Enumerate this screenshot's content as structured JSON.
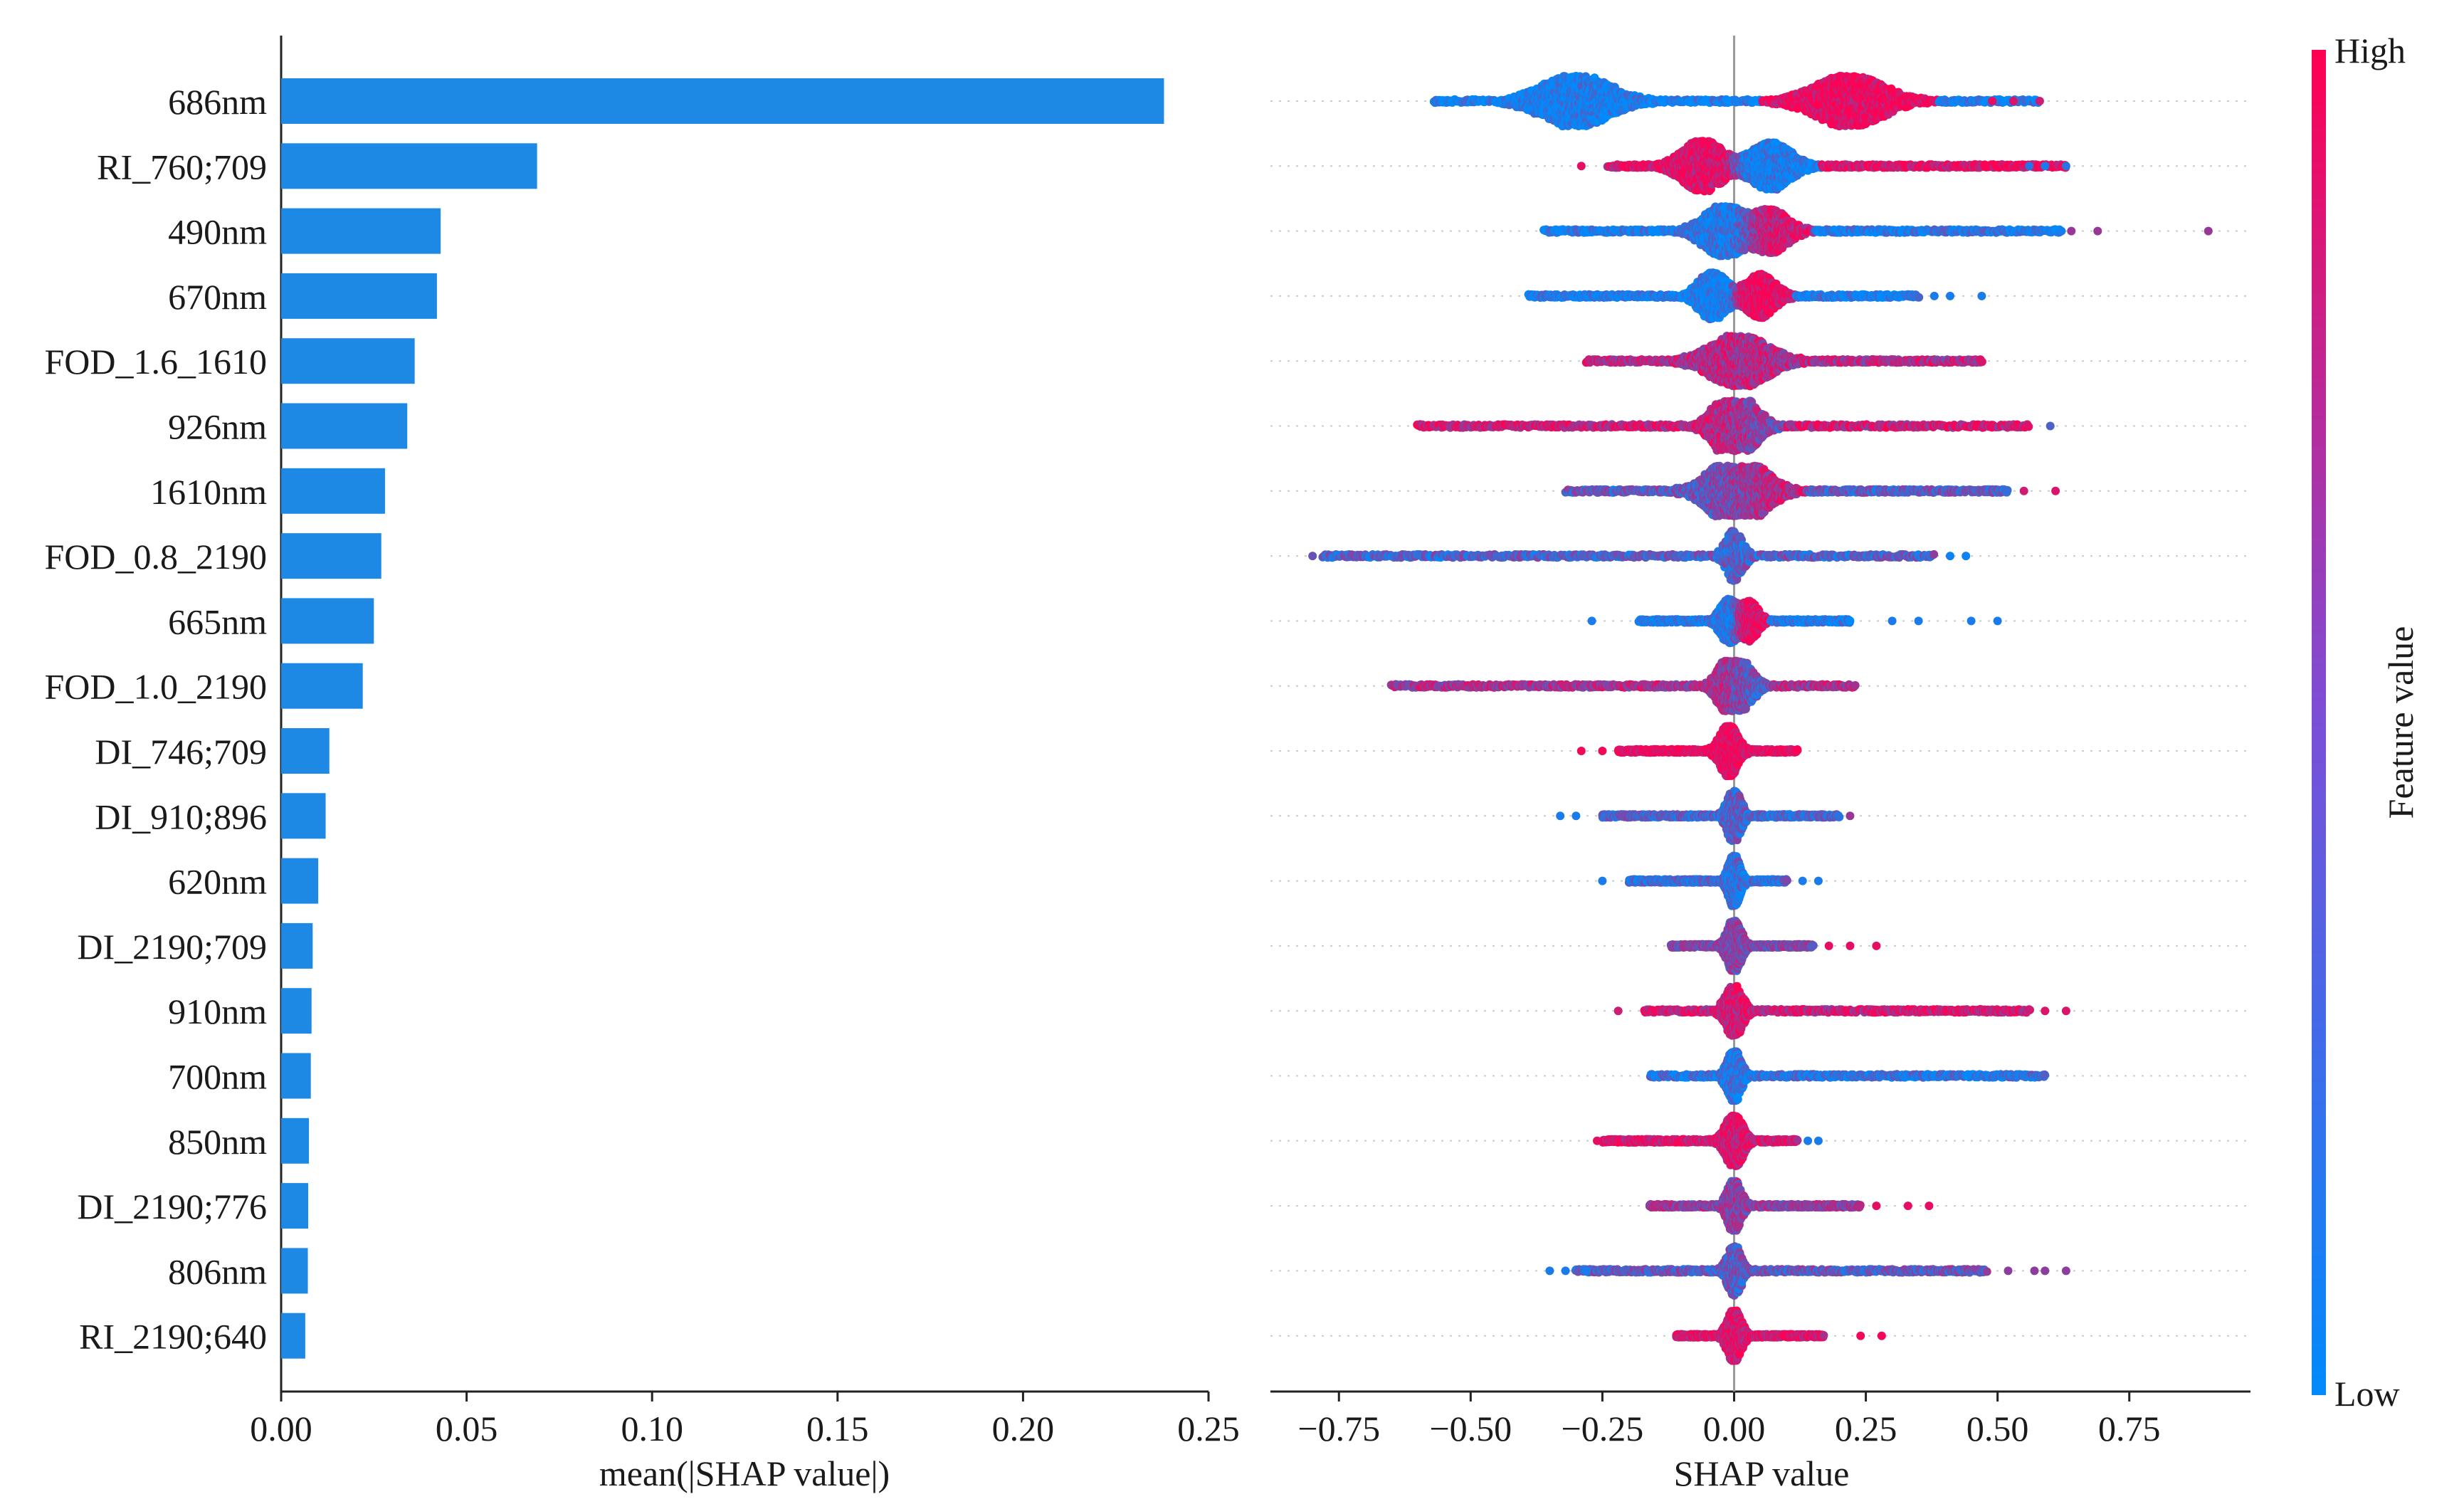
{
  "colors": {
    "bar": "#1e88e5",
    "low": "#008afb",
    "high": "#ff0052",
    "axis": "#222222",
    "zero_line": "#999999",
    "guide": "#cccccc"
  },
  "chart_data": [
    {
      "type": "bar",
      "orientation": "horizontal",
      "title": "",
      "xlabel": "mean(|SHAP value|)",
      "ylabel": "",
      "xlim": [
        0.0,
        0.25
      ],
      "xticks": [
        "0.00",
        "0.05",
        "0.10",
        "0.15",
        "0.20",
        "0.25"
      ],
      "tick_values": [
        0.0,
        0.05,
        0.1,
        0.15,
        0.2,
        0.25
      ],
      "categories": [
        "686nm",
        "RI_760;709",
        "490nm",
        "670nm",
        "FOD_1.6_1610",
        "926nm",
        "1610nm",
        "FOD_0.8_2190",
        "665nm",
        "FOD_1.0_2190",
        "DI_746;709",
        "DI_910;896",
        "620nm",
        "DI_2190;709",
        "910nm",
        "700nm",
        "850nm",
        "DI_2190;776",
        "806nm",
        "RI_2190;640"
      ],
      "values": [
        0.238,
        0.069,
        0.043,
        0.042,
        0.036,
        0.034,
        0.028,
        0.027,
        0.025,
        0.022,
        0.013,
        0.012,
        0.01,
        0.0085,
        0.0082,
        0.008,
        0.0075,
        0.0073,
        0.0072,
        0.0065
      ]
    },
    {
      "type": "scatter",
      "subtype": "beeswarm",
      "title": "",
      "xlabel": "SHAP value",
      "ylabel": "",
      "xlim": [
        -0.88,
        0.98
      ],
      "xticks": [
        "−0.75",
        "−0.50",
        "−0.25",
        "0.00",
        "0.25",
        "0.50",
        "0.75"
      ],
      "tick_values": [
        -0.75,
        -0.5,
        -0.25,
        0.0,
        0.25,
        0.5,
        0.75
      ],
      "categories": [
        "686nm",
        "RI_760;709",
        "490nm",
        "670nm",
        "FOD_1.6_1610",
        "926nm",
        "1610nm",
        "FOD_0.8_2190",
        "665nm",
        "FOD_1.0_2190",
        "DI_746;709",
        "DI_910;896",
        "620nm",
        "DI_2190;709",
        "910nm",
        "700nm",
        "850nm",
        "DI_2190;776",
        "806nm",
        "RI_2190;640"
      ],
      "series": [
        {
          "name": "686nm",
          "min": -0.57,
          "max": 0.58,
          "modes": [
            [
              -0.3,
              0.06,
              1.0,
              0.05
            ],
            [
              0.22,
              0.06,
              1.0,
              0.95
            ]
          ],
          "outliers": [
            [
              0.49,
              0.9
            ],
            [
              0.53,
              0.85
            ],
            [
              0.58,
              0.8
            ]
          ]
        },
        {
          "name": "RI_760;709",
          "min": -0.24,
          "max": 0.63,
          "modes": [
            [
              -0.06,
              0.035,
              1.0,
              0.9
            ],
            [
              0.07,
              0.035,
              0.9,
              0.05
            ]
          ],
          "outliers": [
            [
              -0.29,
              0.9
            ],
            [
              0.56,
              0.15
            ],
            [
              0.59,
              0.1
            ],
            [
              0.63,
              0.15
            ]
          ]
        },
        {
          "name": "490nm",
          "min": -0.36,
          "max": 0.62,
          "modes": [
            [
              -0.02,
              0.035,
              1.0,
              0.1
            ],
            [
              0.07,
              0.03,
              0.8,
              0.8
            ]
          ],
          "outliers": [
            [
              0.64,
              0.6
            ],
            [
              0.69,
              0.6
            ],
            [
              0.9,
              0.6
            ]
          ]
        },
        {
          "name": "670nm",
          "min": -0.39,
          "max": 0.35,
          "modes": [
            [
              -0.04,
              0.025,
              0.9,
              0.05
            ],
            [
              0.05,
              0.025,
              0.8,
              0.95
            ]
          ],
          "outliers": [
            [
              0.38,
              0.1
            ],
            [
              0.41,
              0.1
            ],
            [
              0.47,
              0.1
            ]
          ]
        },
        {
          "name": "FOD_1.6_1610",
          "min": -0.28,
          "max": 0.47,
          "modes": [
            [
              0.01,
              0.05,
              1.0,
              0.7
            ]
          ],
          "outliers": []
        },
        {
          "name": "926nm",
          "min": -0.6,
          "max": 0.56,
          "modes": [
            [
              -0.01,
              0.03,
              1.0,
              0.8
            ],
            [
              0.02,
              0.03,
              0.6,
              0.4
            ]
          ],
          "outliers": [
            [
              0.6,
              0.3
            ]
          ]
        },
        {
          "name": "1610nm",
          "min": -0.32,
          "max": 0.52,
          "modes": [
            [
              -0.01,
              0.04,
              1.0,
              0.35
            ],
            [
              0.03,
              0.04,
              0.7,
              0.8
            ]
          ],
          "outliers": [
            [
              0.55,
              0.8
            ],
            [
              0.61,
              0.85
            ]
          ]
        },
        {
          "name": "FOD_0.8_2190",
          "min": -0.78,
          "max": 0.38,
          "modes": [
            [
              0.0,
              0.015,
              1.0,
              0.3
            ]
          ],
          "outliers": [
            [
              -0.8,
              0.4
            ],
            [
              0.41,
              0.05
            ],
            [
              0.44,
              0.05
            ]
          ]
        },
        {
          "name": "665nm",
          "min": -0.18,
          "max": 0.22,
          "modes": [
            [
              -0.01,
              0.015,
              0.8,
              0.1
            ],
            [
              0.03,
              0.015,
              0.7,
              0.9
            ]
          ],
          "outliers": [
            [
              -0.27,
              0.1
            ],
            [
              0.3,
              0.1
            ],
            [
              0.35,
              0.1
            ],
            [
              0.45,
              0.1
            ],
            [
              0.5,
              0.1
            ]
          ]
        },
        {
          "name": "FOD_1.0_2190",
          "min": -0.65,
          "max": 0.23,
          "modes": [
            [
              -0.01,
              0.02,
              1.0,
              0.65
            ],
            [
              0.02,
              0.02,
              0.6,
              0.3
            ]
          ],
          "outliers": []
        },
        {
          "name": "DI_746;709",
          "min": -0.22,
          "max": 0.12,
          "modes": [
            [
              -0.01,
              0.015,
              1.0,
              0.95
            ]
          ],
          "outliers": [
            [
              -0.29,
              0.95
            ],
            [
              -0.25,
              0.95
            ]
          ]
        },
        {
          "name": "DI_910;896",
          "min": -0.25,
          "max": 0.2,
          "modes": [
            [
              0.0,
              0.012,
              1.0,
              0.3
            ]
          ],
          "outliers": [
            [
              -0.33,
              0.1
            ],
            [
              -0.3,
              0.1
            ],
            [
              0.22,
              0.6
            ]
          ]
        },
        {
          "name": "620nm",
          "min": -0.2,
          "max": 0.1,
          "modes": [
            [
              0.0,
              0.01,
              1.0,
              0.2
            ]
          ],
          "outliers": [
            [
              -0.25,
              0.1
            ],
            [
              0.13,
              0.1
            ],
            [
              0.16,
              0.1
            ]
          ]
        },
        {
          "name": "DI_2190;709",
          "min": -0.12,
          "max": 0.15,
          "modes": [
            [
              0.0,
              0.012,
              1.0,
              0.5
            ]
          ],
          "outliers": [
            [
              0.18,
              0.9
            ],
            [
              0.22,
              0.9
            ],
            [
              0.27,
              0.9
            ]
          ]
        },
        {
          "name": "910nm",
          "min": -0.17,
          "max": 0.56,
          "modes": [
            [
              0.0,
              0.015,
              1.0,
              0.8
            ]
          ],
          "outliers": [
            [
              -0.22,
              0.8
            ],
            [
              0.59,
              0.85
            ],
            [
              0.63,
              0.85
            ]
          ]
        },
        {
          "name": "700nm",
          "min": -0.16,
          "max": 0.59,
          "modes": [
            [
              0.0,
              0.012,
              1.0,
              0.15
            ]
          ],
          "outliers": []
        },
        {
          "name": "850nm",
          "min": -0.25,
          "max": 0.12,
          "modes": [
            [
              0.0,
              0.015,
              1.0,
              0.85
            ]
          ],
          "outliers": [
            [
              -0.26,
              0.9
            ],
            [
              0.14,
              0.1
            ],
            [
              0.16,
              0.1
            ]
          ]
        },
        {
          "name": "DI_2190;776",
          "min": -0.16,
          "max": 0.24,
          "modes": [
            [
              0.0,
              0.012,
              1.0,
              0.55
            ]
          ],
          "outliers": [
            [
              0.27,
              0.9
            ],
            [
              0.33,
              0.9
            ],
            [
              0.37,
              0.9
            ]
          ]
        },
        {
          "name": "806nm",
          "min": -0.3,
          "max": 0.48,
          "modes": [
            [
              0.0,
              0.012,
              1.0,
              0.35
            ]
          ],
          "outliers": [
            [
              -0.35,
              0.1
            ],
            [
              -0.32,
              0.1
            ],
            [
              -0.28,
              0.1
            ],
            [
              0.52,
              0.55
            ],
            [
              0.57,
              0.55
            ],
            [
              0.59,
              0.55
            ],
            [
              0.63,
              0.55
            ]
          ]
        },
        {
          "name": "RI_2190;640",
          "min": -0.11,
          "max": 0.17,
          "modes": [
            [
              0.0,
              0.012,
              1.0,
              0.85
            ]
          ],
          "outliers": [
            [
              0.24,
              0.95
            ],
            [
              0.28,
              0.95
            ]
          ]
        }
      ]
    },
    {
      "type": "colorbar",
      "label": "Feature value",
      "high_label": "High",
      "low_label": "Low"
    }
  ]
}
